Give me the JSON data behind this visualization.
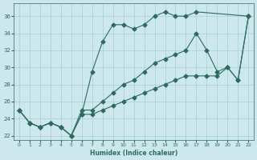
{
  "xlabel": "Humidex (Indice chaleur)",
  "ylabel": "",
  "xlim": [
    -0.5,
    22.5
  ],
  "ylim": [
    21.5,
    37.5
  ],
  "yticks": [
    22,
    24,
    26,
    28,
    30,
    32,
    34,
    36
  ],
  "xticks": [
    0,
    1,
    2,
    3,
    4,
    5,
    6,
    7,
    8,
    9,
    10,
    11,
    12,
    13,
    14,
    15,
    16,
    17,
    18,
    19,
    20,
    21,
    22
  ],
  "bg_color": "#cce8ec",
  "grid_color": "#aacdd4",
  "line_color": "#2e6b5e",
  "series": [
    {
      "x": [
        0,
        1,
        2,
        3,
        4,
        5,
        6,
        7,
        8,
        9,
        10,
        11,
        12,
        13,
        14,
        15,
        16,
        17,
        22
      ],
      "y": [
        25.0,
        23.5,
        23.0,
        23.5,
        23.0,
        22.0,
        24.5,
        29.5,
        33.0,
        35.0,
        35.0,
        34.5,
        35.0,
        36.0,
        36.5,
        36.0,
        36.0,
        36.5,
        36.0
      ],
      "marker": "D",
      "markersize": 2.5,
      "linestyle": "-"
    },
    {
      "x": [
        0,
        1,
        2,
        3,
        4,
        5,
        6,
        7,
        8,
        9,
        10,
        11,
        12,
        13,
        14,
        15,
        16,
        17,
        18,
        19,
        20,
        21,
        22
      ],
      "y": [
        25.0,
        23.5,
        23.0,
        23.5,
        23.0,
        22.0,
        25.0,
        25.0,
        26.0,
        27.0,
        28.0,
        28.5,
        29.5,
        30.5,
        31.0,
        31.5,
        32.0,
        34.0,
        32.0,
        29.5,
        30.0,
        28.5,
        36.0
      ],
      "marker": "D",
      "markersize": 2.5,
      "linestyle": "-"
    },
    {
      "x": [
        0,
        1,
        2,
        3,
        4,
        5,
        6,
        7,
        8,
        9,
        10,
        11,
        12,
        13,
        14,
        15,
        16,
        17,
        18,
        19,
        20,
        21,
        22
      ],
      "y": [
        25.0,
        23.5,
        23.0,
        23.5,
        23.0,
        22.0,
        24.5,
        24.5,
        25.0,
        25.5,
        26.0,
        26.5,
        27.0,
        27.5,
        28.0,
        28.5,
        29.0,
        29.0,
        29.0,
        29.0,
        30.0,
        28.5,
        36.0
      ],
      "marker": "D",
      "markersize": 2.5,
      "linestyle": "-"
    }
  ]
}
